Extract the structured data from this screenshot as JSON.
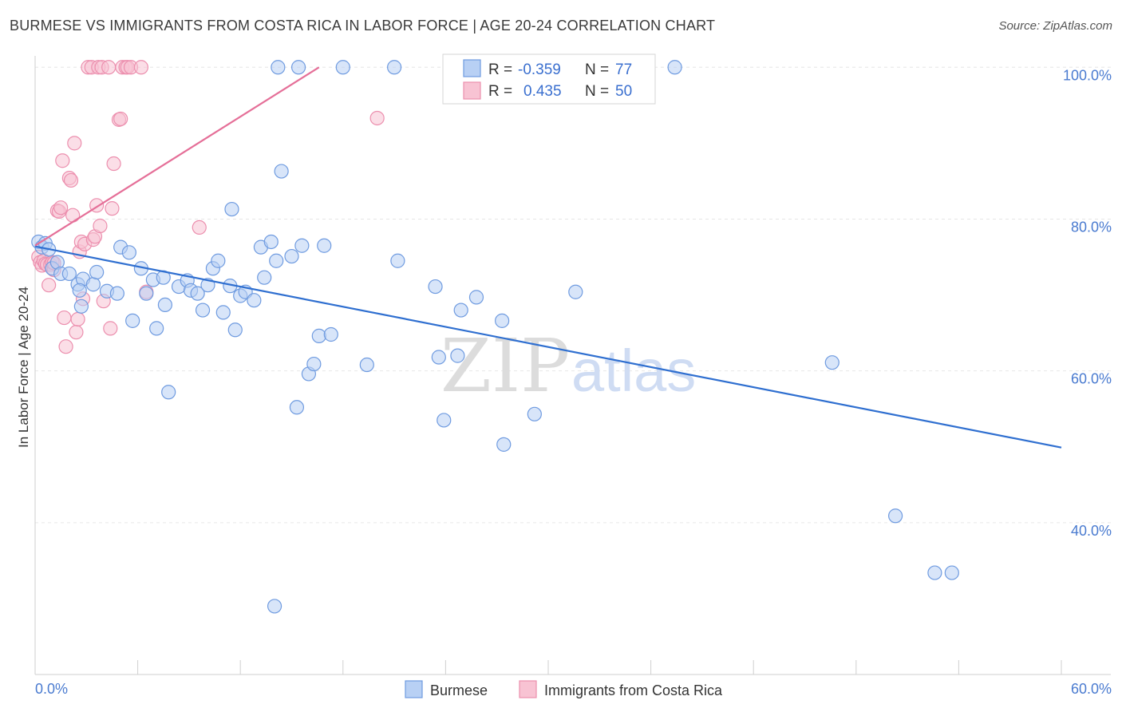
{
  "title": "BURMESE VS IMMIGRANTS FROM COSTA RICA IN LABOR FORCE | AGE 20-24 CORRELATION CHART",
  "source": "Source: ZipAtlas.com",
  "watermark": {
    "zip": "ZIP",
    "atlas": "atlas"
  },
  "legend": {
    "r_label": "R =",
    "n_label": "N =",
    "rows": [
      {
        "series": "Burmese",
        "r": "-0.359",
        "n": "77"
      },
      {
        "series": "Immigrants from Costa Rica",
        "r": "0.435",
        "n": "50"
      }
    ]
  },
  "chart_data": {
    "type": "scatter",
    "ylabel": "In Labor Force | Age 20-24",
    "xlim": [
      0,
      60
    ],
    "ylim": [
      20,
      101.5
    ],
    "x_tick_labels": [
      "0.0%",
      "60.0%"
    ],
    "y_ticks": [
      {
        "value": 100,
        "label": "100.0%"
      },
      {
        "value": 80,
        "label": "80.0%"
      },
      {
        "value": 60,
        "label": "60.0%"
      },
      {
        "value": 40,
        "label": "40.0%"
      }
    ],
    "grid": true,
    "colors": {
      "burmese_fill": "#b8d0f4",
      "burmese_stroke": "#6f9be0",
      "burmese_line": "#2f6fd0",
      "costa_fill": "#f8c3d3",
      "costa_stroke": "#ec8fae",
      "costa_line": "#e56f98",
      "tick_label": "#4a7bd0"
    },
    "series": [
      {
        "name": "Burmese",
        "trend": {
          "x": [
            0,
            60
          ],
          "y": [
            76.4,
            49.9
          ]
        },
        "points": [
          [
            0.2,
            77.0
          ],
          [
            0.4,
            76.3
          ],
          [
            0.6,
            76.8
          ],
          [
            0.8,
            76.0
          ],
          [
            1.0,
            73.5
          ],
          [
            1.3,
            74.3
          ],
          [
            1.5,
            72.8
          ],
          [
            2.0,
            72.8
          ],
          [
            2.5,
            71.4
          ],
          [
            2.8,
            72.1
          ],
          [
            2.6,
            70.6
          ],
          [
            2.7,
            68.5
          ],
          [
            3.4,
            71.4
          ],
          [
            3.6,
            73.0
          ],
          [
            4.2,
            70.5
          ],
          [
            4.8,
            70.2
          ],
          [
            5.0,
            76.3
          ],
          [
            5.5,
            75.6
          ],
          [
            5.7,
            66.6
          ],
          [
            6.2,
            73.5
          ],
          [
            6.5,
            70.2
          ],
          [
            6.9,
            72.0
          ],
          [
            7.1,
            65.6
          ],
          [
            7.5,
            72.3
          ],
          [
            7.6,
            68.7
          ],
          [
            7.8,
            57.2
          ],
          [
            8.4,
            71.1
          ],
          [
            8.9,
            71.9
          ],
          [
            9.1,
            70.6
          ],
          [
            9.5,
            70.2
          ],
          [
            9.8,
            68.0
          ],
          [
            10.1,
            71.3
          ],
          [
            10.4,
            73.5
          ],
          [
            10.7,
            74.5
          ],
          [
            11.0,
            67.7
          ],
          [
            11.4,
            71.2
          ],
          [
            11.5,
            81.3
          ],
          [
            11.7,
            65.4
          ],
          [
            12.0,
            69.9
          ],
          [
            12.3,
            70.4
          ],
          [
            12.8,
            69.3
          ],
          [
            13.2,
            76.3
          ],
          [
            13.4,
            72.3
          ],
          [
            13.8,
            77.0
          ],
          [
            14.1,
            74.5
          ],
          [
            14.2,
            100.0
          ],
          [
            14.4,
            86.3
          ],
          [
            15.0,
            75.1
          ],
          [
            15.3,
            55.2
          ],
          [
            15.4,
            100.0
          ],
          [
            15.6,
            76.5
          ],
          [
            16.0,
            59.6
          ],
          [
            16.3,
            60.9
          ],
          [
            16.9,
            76.5
          ],
          [
            16.6,
            64.6
          ],
          [
            17.3,
            64.8
          ],
          [
            18.0,
            100.0
          ],
          [
            19.4,
            60.8
          ],
          [
            21.0,
            100.0
          ],
          [
            21.2,
            74.5
          ],
          [
            23.4,
            71.1
          ],
          [
            23.6,
            61.8
          ],
          [
            23.9,
            53.5
          ],
          [
            24.7,
            62.0
          ],
          [
            24.9,
            68.0
          ],
          [
            25.3,
            100.0
          ],
          [
            25.8,
            69.7
          ],
          [
            27.3,
            66.6
          ],
          [
            27.4,
            50.3
          ],
          [
            29.2,
            54.3
          ],
          [
            31.6,
            70.4
          ],
          [
            37.4,
            100.0
          ],
          [
            46.6,
            61.1
          ],
          [
            50.3,
            40.9
          ],
          [
            52.6,
            33.4
          ],
          [
            53.6,
            33.4
          ],
          [
            14.0,
            29.0
          ]
        ]
      },
      {
        "name": "Immigrants from Costa Rica",
        "trend": {
          "x": [
            0,
            16.6
          ],
          "y": [
            76.5,
            100.0
          ]
        },
        "points": [
          [
            0.2,
            75.0
          ],
          [
            0.3,
            74.3
          ],
          [
            0.4,
            73.9
          ],
          [
            0.5,
            74.5
          ],
          [
            0.6,
            74.1
          ],
          [
            0.7,
            74.0
          ],
          [
            0.8,
            71.3
          ],
          [
            0.9,
            74.0
          ],
          [
            1.0,
            74.3
          ],
          [
            1.1,
            73.3
          ],
          [
            1.1,
            74.2
          ],
          [
            1.3,
            81.1
          ],
          [
            1.4,
            81.0
          ],
          [
            1.5,
            81.5
          ],
          [
            1.6,
            87.7
          ],
          [
            1.7,
            67.0
          ],
          [
            1.8,
            63.2
          ],
          [
            2.0,
            85.4
          ],
          [
            2.1,
            85.1
          ],
          [
            2.2,
            80.5
          ],
          [
            2.3,
            90.0
          ],
          [
            2.4,
            65.1
          ],
          [
            2.5,
            66.8
          ],
          [
            2.6,
            75.7
          ],
          [
            2.7,
            77.0
          ],
          [
            2.8,
            69.5
          ],
          [
            2.9,
            76.7
          ],
          [
            3.1,
            100.0
          ],
          [
            3.3,
            100.0
          ],
          [
            3.4,
            77.3
          ],
          [
            3.5,
            77.7
          ],
          [
            3.6,
            81.8
          ],
          [
            3.7,
            100.0
          ],
          [
            3.9,
            100.0
          ],
          [
            3.8,
            79.1
          ],
          [
            4.0,
            69.2
          ],
          [
            4.3,
            100.0
          ],
          [
            4.4,
            65.6
          ],
          [
            4.5,
            81.4
          ],
          [
            4.6,
            87.3
          ],
          [
            4.9,
            93.1
          ],
          [
            5.0,
            93.2
          ],
          [
            5.1,
            100.0
          ],
          [
            5.3,
            100.0
          ],
          [
            5.4,
            100.0
          ],
          [
            5.6,
            100.0
          ],
          [
            6.2,
            100.0
          ],
          [
            6.5,
            70.4
          ],
          [
            9.6,
            78.9
          ],
          [
            20.0,
            93.3
          ]
        ]
      }
    ]
  }
}
